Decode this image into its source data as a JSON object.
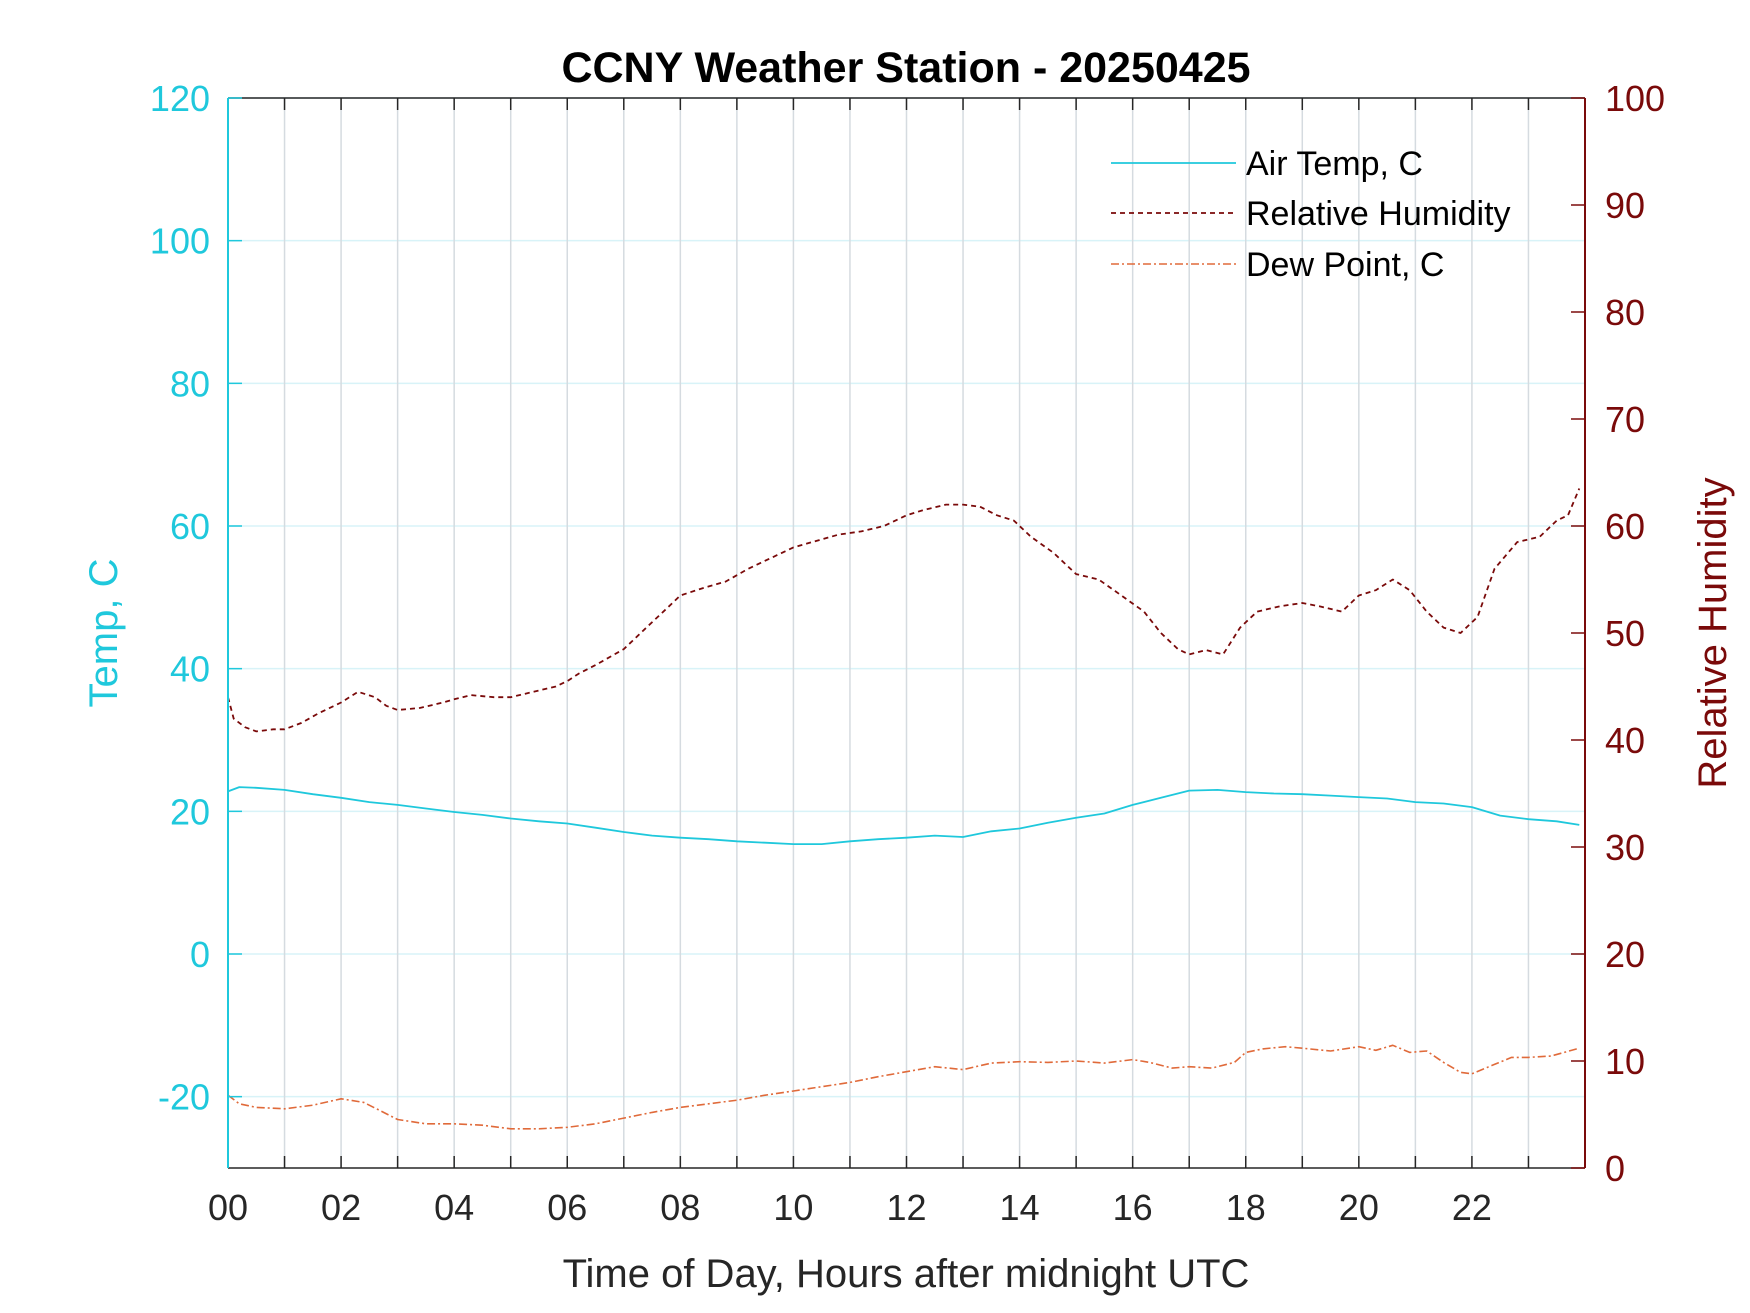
{
  "chart_data": {
    "type": "line",
    "title": "CCNY Weather Station - 20250425",
    "xlabel": "Time of Day, Hours after midnight UTC",
    "ylabel_left": "Temp, C",
    "ylabel_right": "Relative Humidity",
    "xlim": [
      0,
      24
    ],
    "ylim_left": [
      -30,
      120
    ],
    "ylim_right": [
      0,
      100
    ],
    "x_ticks": [
      0,
      2,
      4,
      6,
      8,
      10,
      12,
      14,
      16,
      18,
      20,
      22
    ],
    "x_tick_labels": [
      "00",
      "02",
      "04",
      "06",
      "08",
      "10",
      "12",
      "14",
      "16",
      "18",
      "20",
      "22"
    ],
    "y_left_ticks": [
      -20,
      0,
      20,
      40,
      60,
      80,
      100,
      120
    ],
    "y_left_tick_labels": [
      "-20",
      "0",
      "20",
      "40",
      "60",
      "80",
      "100",
      "120"
    ],
    "y_right_ticks": [
      0,
      10,
      20,
      30,
      40,
      50,
      60,
      70,
      80,
      90,
      100
    ],
    "y_right_tick_labels": [
      "0",
      "10",
      "20",
      "30",
      "40",
      "50",
      "60",
      "70",
      "80",
      "90",
      "100"
    ],
    "grid": true,
    "legend_position": "top-right",
    "colors": {
      "temp": "#1fc8dc",
      "rh": "#7a0a0a",
      "dew": "#e06a3a",
      "grid": "#d5dbe0",
      "grid_h": "#d8f3f8",
      "axis_x": "#262626"
    },
    "series": [
      {
        "name": "Air Temp, C",
        "axis": "left",
        "style": "solid",
        "x": [
          0,
          0.2,
          0.5,
          1,
          1.5,
          2,
          2.5,
          3,
          3.5,
          4,
          4.5,
          5,
          5.5,
          6,
          6.5,
          7,
          7.5,
          8,
          8.5,
          9,
          9.5,
          10,
          10.5,
          11,
          11.5,
          12,
          12.5,
          13,
          13.5,
          14,
          14.5,
          15,
          15.5,
          16,
          16.5,
          17,
          17.5,
          18,
          18.5,
          19,
          19.5,
          20,
          20.5,
          21,
          21.5,
          22,
          22.5,
          23,
          23.5,
          23.9
        ],
        "values": [
          22.8,
          23.4,
          23.3,
          23.0,
          22.4,
          21.9,
          21.3,
          20.9,
          20.4,
          19.9,
          19.5,
          19.0,
          18.6,
          18.3,
          17.7,
          17.1,
          16.6,
          16.3,
          16.1,
          15.8,
          15.6,
          15.4,
          15.4,
          15.8,
          16.1,
          16.3,
          16.6,
          16.4,
          17.2,
          17.6,
          18.4,
          19.1,
          19.7,
          20.9,
          21.9,
          22.9,
          23.0,
          22.7,
          22.5,
          22.4,
          22.2,
          22.0,
          21.8,
          21.3,
          21.1,
          20.6,
          19.4,
          18.9,
          18.6,
          18.1
        ]
      },
      {
        "name": "Relative Humidity",
        "axis": "right",
        "style": "dashed",
        "x": [
          0,
          0.1,
          0.3,
          0.5,
          0.8,
          1,
          1.3,
          1.6,
          2,
          2.3,
          2.6,
          2.8,
          3,
          3.4,
          3.8,
          4,
          4.3,
          4.7,
          5,
          5.4,
          5.8,
          6,
          6.2,
          6.5,
          7,
          7.4,
          7.8,
          8,
          8.4,
          8.8,
          9.2,
          9.6,
          10,
          10.4,
          10.8,
          11.2,
          11.6,
          12,
          12.3,
          12.7,
          13,
          13.3,
          13.6,
          13.9,
          14.2,
          14.6,
          15,
          15.4,
          15.8,
          16.2,
          16.5,
          16.8,
          17,
          17.3,
          17.6,
          17.9,
          18.2,
          18.6,
          19,
          19.3,
          19.7,
          20,
          20.3,
          20.6,
          20.9,
          21.2,
          21.5,
          21.8,
          22.1,
          22.4,
          22.8,
          23.2,
          23.5,
          23.7,
          23.9
        ],
        "values": [
          44.0,
          42.0,
          41.2,
          40.8,
          41.0,
          41.0,
          41.6,
          42.5,
          43.5,
          44.5,
          44.0,
          43.2,
          42.8,
          43.0,
          43.5,
          43.8,
          44.2,
          44.0,
          44.0,
          44.5,
          45.0,
          45.5,
          46.2,
          47.0,
          48.5,
          50.5,
          52.5,
          53.5,
          54.2,
          54.8,
          56.0,
          57.0,
          58.0,
          58.6,
          59.2,
          59.5,
          60.0,
          61.0,
          61.5,
          62.0,
          62.0,
          61.8,
          61.0,
          60.5,
          59.0,
          57.5,
          55.5,
          55.0,
          53.5,
          52.0,
          50.0,
          48.5,
          48.0,
          48.4,
          48.0,
          50.5,
          52.0,
          52.5,
          52.8,
          52.5,
          52.0,
          53.5,
          54.0,
          55.0,
          54.0,
          52.0,
          50.5,
          50.0,
          51.5,
          56.0,
          58.5,
          59.0,
          60.5,
          61.0,
          63.5
        ]
      },
      {
        "name": "Dew Point, C",
        "axis": "left",
        "style": "dashdot",
        "x": [
          0,
          0.2,
          0.5,
          1,
          1.5,
          2,
          2.4,
          2.7,
          3,
          3.5,
          4,
          4.5,
          5,
          5.5,
          6,
          6.5,
          7,
          7.5,
          8,
          8.5,
          9,
          9.5,
          10,
          10.5,
          11,
          11.5,
          12,
          12.5,
          13,
          13.5,
          14,
          14.5,
          15,
          15.5,
          16,
          16.3,
          16.7,
          17,
          17.4,
          17.8,
          18,
          18.3,
          18.7,
          19,
          19.5,
          20,
          20.3,
          20.6,
          20.9,
          21.2,
          21.5,
          21.8,
          22,
          22.3,
          22.7,
          23,
          23.4,
          23.9
        ],
        "values": [
          -19.8,
          -21.0,
          -21.5,
          -21.7,
          -21.2,
          -20.3,
          -20.8,
          -22.0,
          -23.2,
          -23.8,
          -23.8,
          -24.0,
          -24.5,
          -24.5,
          -24.3,
          -23.8,
          -23.0,
          -22.2,
          -21.5,
          -21.0,
          -20.5,
          -19.8,
          -19.2,
          -18.6,
          -18.0,
          -17.2,
          -16.5,
          -15.8,
          -16.2,
          -15.3,
          -15.1,
          -15.2,
          -15.0,
          -15.3,
          -14.8,
          -15.2,
          -16.0,
          -15.8,
          -16.0,
          -15.2,
          -13.8,
          -13.3,
          -13.0,
          -13.2,
          -13.6,
          -13.0,
          -13.5,
          -12.8,
          -13.8,
          -13.6,
          -15.2,
          -16.6,
          -16.8,
          -15.8,
          -14.5,
          -14.5,
          -14.3,
          -13.2
        ]
      }
    ]
  }
}
